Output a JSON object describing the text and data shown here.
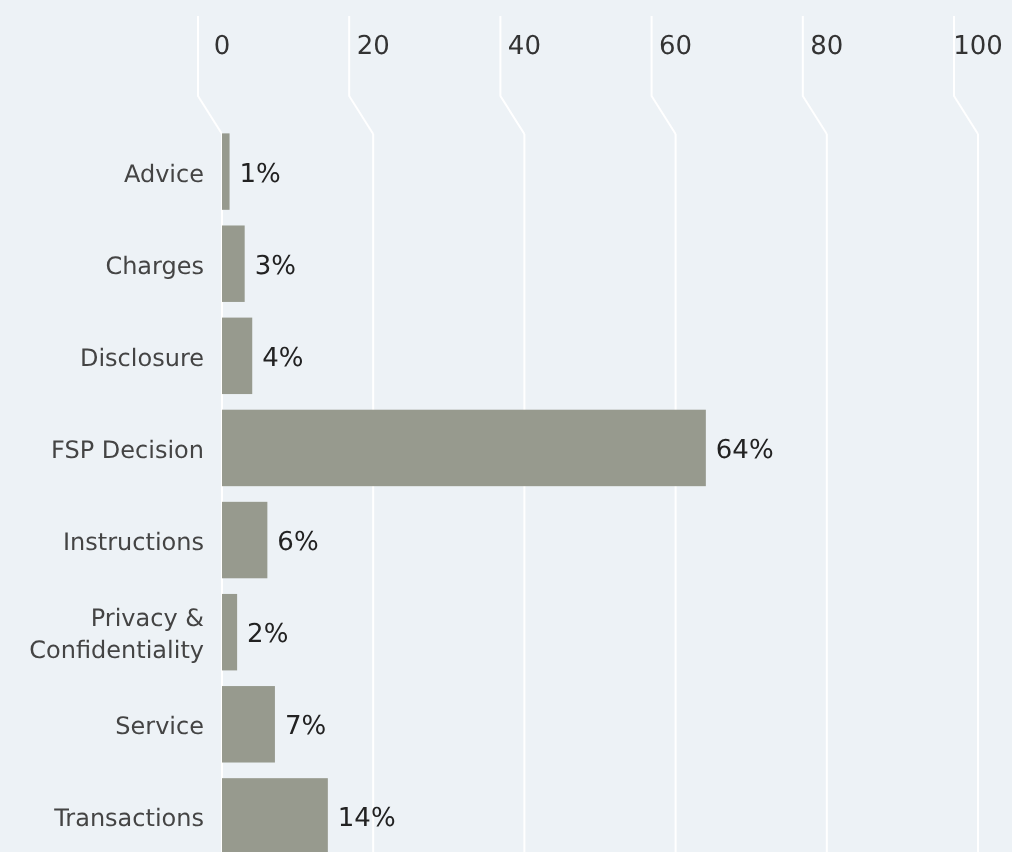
{
  "chart_data": {
    "type": "bar",
    "orientation": "horizontal",
    "categories": [
      "Advice",
      "Charges",
      "Disclosure",
      "FSP Decision",
      "Instructions",
      "Privacy & Confidentiality",
      "Service",
      "Transactions"
    ],
    "values": [
      1,
      3,
      4,
      64,
      6,
      2,
      7,
      14
    ],
    "value_labels": [
      "1%",
      "3%",
      "4%",
      "64%",
      "6%",
      "2%",
      "7%",
      "14%"
    ],
    "color": "#979a8e",
    "xlim": [
      0,
      100
    ],
    "xticks": [
      0,
      20,
      40,
      60,
      80,
      100
    ],
    "grid": "x"
  }
}
